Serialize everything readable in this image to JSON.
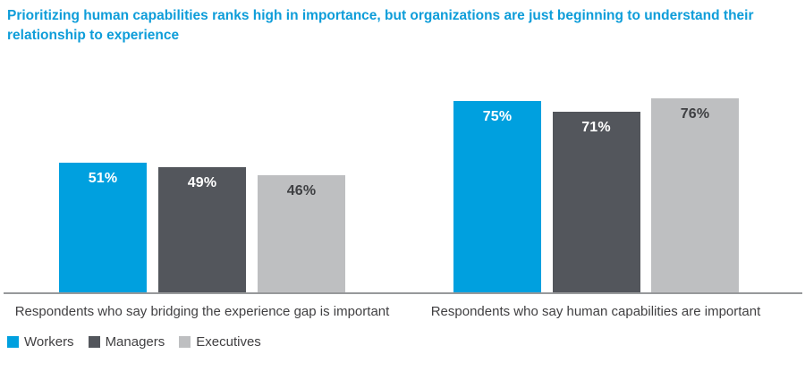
{
  "title": "Prioritizing human capabilities ranks high in importance, but organizations are just beginning to understand their relationship to experience",
  "colors": {
    "title_text": "#0E9DD9",
    "workers": "#00A0DF",
    "managers": "#53565C",
    "executives": "#BEBFC1",
    "axis_line": "#97999B",
    "caption_text": "#414042",
    "label_on_color": "#FFFFFF",
    "label_on_light": "#3F4043"
  },
  "chart_data": {
    "type": "bar",
    "title": "Prioritizing human capabilities ranks high in importance, but organizations are just beginning to understand their relationship to experience",
    "categories": [
      "Respondents who say bridging the experience gap is important",
      "Respondents who say human capabilities are important"
    ],
    "series": [
      {
        "name": "Workers",
        "values": [
          51,
          75
        ],
        "color": "#00A0DF",
        "label_color": "#FFFFFF"
      },
      {
        "name": "Managers",
        "values": [
          49,
          71
        ],
        "color": "#53565C",
        "label_color": "#FFFFFF"
      },
      {
        "name": "Executives",
        "values": [
          46,
          76
        ],
        "color": "#BEBFC1",
        "label_color": "#3F4043"
      }
    ],
    "value_suffix": "%",
    "xlabel": "",
    "ylabel": "",
    "ylim": [
      0,
      100
    ],
    "grid": false,
    "y_axis_visible": false,
    "legend_position": "bottom-left"
  },
  "legend": {
    "items": [
      {
        "label": "Workers",
        "color": "#00A0DF"
      },
      {
        "label": "Managers",
        "color": "#53565C"
      },
      {
        "label": "Executives",
        "color": "#BEBFC1"
      }
    ]
  }
}
